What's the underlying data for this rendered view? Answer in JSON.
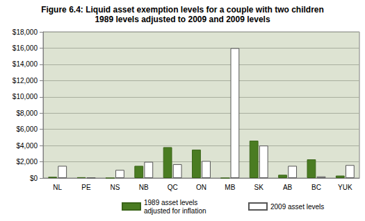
{
  "chart_data": {
    "type": "bar",
    "title": "Figure 6.4: Liquid asset exemption levels for a couple with two children",
    "subtitle": "1989 levels adjusted to 2009 and 2009 levels",
    "categories": [
      "NL",
      "PE",
      "NS",
      "NB",
      "QC",
      "ON",
      "MB",
      "SK",
      "AB",
      "BC",
      "YUK"
    ],
    "series": [
      {
        "name": "1989 asset levels adjusted for inflation",
        "color": "#4a7c22",
        "values": [
          150,
          100,
          0,
          1500,
          3800,
          3500,
          0,
          4600,
          400,
          2300,
          300
        ]
      },
      {
        "name": "2009 asset levels",
        "color": "#ffffff",
        "values": [
          1500,
          50,
          1000,
          2000,
          1700,
          2100,
          16000,
          4000,
          1500,
          200,
          1600
        ]
      }
    ],
    "ylim": [
      0,
      18000
    ],
    "yticks": [
      {
        "value": 0,
        "label": "$0"
      },
      {
        "value": 2000,
        "label": "$2,000"
      },
      {
        "value": 4000,
        "label": "$4,000"
      },
      {
        "value": 6000,
        "label": "$6,000"
      },
      {
        "value": 8000,
        "label": "$8,000"
      },
      {
        "value": 10000,
        "label": "$10,000"
      },
      {
        "value": 12000,
        "label": "$12,000"
      },
      {
        "value": 14000,
        "label": "$14,000"
      },
      {
        "value": 16000,
        "label": "$16,000"
      },
      {
        "value": 18000,
        "label": "$18,000"
      }
    ],
    "grid": true,
    "legend": "bottom"
  }
}
